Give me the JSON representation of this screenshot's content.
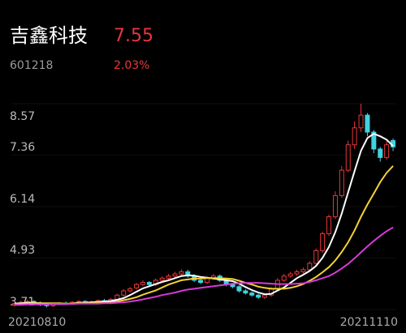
{
  "header": {
    "name": "吉鑫科技",
    "price": 7.55,
    "code": "601218",
    "change": "2.03%"
  },
  "chart_data": {
    "type": "candlestick",
    "start_date": "20210810",
    "end_date": "20211110",
    "ylim": [
      3.71,
      8.57
    ],
    "yticks": [
      8.57,
      7.36,
      6.14,
      4.93,
      3.71
    ],
    "up_color": "#e8363a",
    "down_color": "#3fd3e0",
    "open": [
      3.82,
      3.85,
      3.88,
      3.9,
      3.86,
      3.82,
      3.8,
      3.84,
      3.86,
      3.85,
      3.88,
      3.9,
      3.87,
      3.89,
      3.92,
      3.9,
      3.95,
      4.05,
      4.15,
      4.22,
      4.3,
      4.35,
      4.3,
      4.4,
      4.45,
      4.5,
      4.55,
      4.6,
      4.5,
      4.4,
      4.35,
      4.45,
      4.5,
      4.4,
      4.3,
      4.25,
      4.15,
      4.1,
      4.05,
      4.0,
      4.05,
      4.2,
      4.4,
      4.5,
      4.55,
      4.6,
      4.65,
      4.8,
      5.1,
      5.5,
      5.9,
      6.4,
      7.0,
      7.6,
      8.0,
      8.3,
      7.9,
      7.5,
      7.3,
      7.7
    ],
    "close": [
      3.85,
      3.88,
      3.9,
      3.86,
      3.82,
      3.8,
      3.84,
      3.86,
      3.85,
      3.88,
      3.9,
      3.87,
      3.89,
      3.92,
      3.9,
      3.95,
      4.05,
      4.15,
      4.2,
      4.3,
      4.35,
      4.3,
      4.4,
      4.45,
      4.5,
      4.55,
      4.6,
      4.5,
      4.4,
      4.35,
      4.45,
      4.5,
      4.4,
      4.3,
      4.25,
      4.15,
      4.1,
      4.05,
      4.0,
      4.05,
      4.2,
      4.4,
      4.5,
      4.55,
      4.6,
      4.65,
      4.8,
      5.1,
      5.5,
      5.9,
      6.4,
      7.0,
      7.6,
      8.0,
      8.3,
      7.9,
      7.5,
      7.3,
      7.6,
      7.55
    ],
    "high": [
      3.88,
      3.92,
      3.94,
      3.93,
      3.9,
      3.86,
      3.87,
      3.89,
      3.9,
      3.91,
      3.93,
      3.93,
      3.92,
      3.95,
      3.96,
      3.98,
      4.08,
      4.19,
      4.24,
      4.34,
      4.4,
      4.38,
      4.44,
      4.49,
      4.55,
      4.6,
      4.66,
      4.65,
      4.54,
      4.44,
      4.49,
      4.55,
      4.54,
      4.44,
      4.34,
      4.28,
      4.19,
      4.14,
      4.08,
      4.09,
      4.24,
      4.45,
      4.55,
      4.6,
      4.65,
      4.7,
      4.85,
      5.15,
      5.55,
      5.95,
      6.5,
      7.1,
      7.7,
      8.15,
      8.57,
      8.35,
      7.95,
      7.55,
      7.7,
      7.75
    ],
    "low": [
      3.78,
      3.82,
      3.85,
      3.83,
      3.79,
      3.76,
      3.77,
      3.81,
      3.82,
      3.83,
      3.85,
      3.84,
      3.84,
      3.86,
      3.87,
      3.87,
      3.92,
      4.01,
      4.11,
      4.18,
      4.26,
      4.27,
      4.26,
      4.36,
      4.41,
      4.46,
      4.51,
      4.46,
      4.36,
      4.31,
      4.31,
      4.41,
      4.36,
      4.26,
      4.21,
      4.11,
      4.06,
      4.01,
      3.96,
      3.96,
      4.01,
      4.16,
      4.36,
      4.46,
      4.51,
      4.56,
      4.61,
      4.75,
      5.05,
      5.45,
      5.85,
      6.35,
      6.95,
      7.5,
      7.9,
      7.8,
      7.4,
      7.2,
      7.25,
      7.45
    ],
    "lines": [
      {
        "color": "#ffffff",
        "values": [
          3.85,
          3.86,
          3.87,
          3.87,
          3.86,
          3.85,
          3.84,
          3.84,
          3.84,
          3.85,
          3.87,
          3.87,
          3.88,
          3.89,
          3.9,
          3.91,
          3.94,
          3.98,
          4.05,
          4.13,
          4.21,
          4.26,
          4.31,
          4.36,
          4.4,
          4.45,
          4.5,
          4.52,
          4.51,
          4.48,
          4.46,
          4.44,
          4.42,
          4.4,
          4.38,
          4.32,
          4.24,
          4.17,
          4.11,
          4.07,
          4.08,
          4.16,
          4.23,
          4.34,
          4.45,
          4.53,
          4.62,
          4.74,
          4.93,
          5.19,
          5.54,
          5.98,
          6.48,
          6.98,
          7.46,
          7.76,
          7.86,
          7.8,
          7.72,
          7.57
        ]
      },
      {
        "color": "#f5d232",
        "values": [
          3.84,
          3.85,
          3.85,
          3.86,
          3.86,
          3.86,
          3.86,
          3.86,
          3.85,
          3.85,
          3.86,
          3.86,
          3.86,
          3.87,
          3.87,
          3.88,
          3.9,
          3.93,
          3.96,
          4.0,
          4.06,
          4.11,
          4.16,
          4.23,
          4.3,
          4.35,
          4.4,
          4.42,
          4.44,
          4.44,
          4.45,
          4.45,
          4.45,
          4.44,
          4.43,
          4.39,
          4.34,
          4.3,
          4.25,
          4.22,
          4.2,
          4.2,
          4.2,
          4.22,
          4.26,
          4.31,
          4.39,
          4.48,
          4.59,
          4.71,
          4.87,
          5.07,
          5.3,
          5.58,
          5.9,
          6.19,
          6.45,
          6.72,
          6.94,
          7.1
        ]
      },
      {
        "color": "#d63ad6",
        "values": [
          3.82,
          3.82,
          3.83,
          3.83,
          3.83,
          3.83,
          3.84,
          3.84,
          3.84,
          3.84,
          3.85,
          3.85,
          3.85,
          3.85,
          3.86,
          3.86,
          3.87,
          3.88,
          3.9,
          3.92,
          3.95,
          3.98,
          4.01,
          4.05,
          4.08,
          4.11,
          4.15,
          4.18,
          4.2,
          4.22,
          4.24,
          4.26,
          4.28,
          4.3,
          4.32,
          4.33,
          4.34,
          4.34,
          4.34,
          4.33,
          4.32,
          4.31,
          4.31,
          4.31,
          4.32,
          4.33,
          4.36,
          4.4,
          4.45,
          4.5,
          4.58,
          4.68,
          4.79,
          4.92,
          5.06,
          5.2,
          5.33,
          5.45,
          5.56,
          5.65
        ]
      }
    ]
  }
}
